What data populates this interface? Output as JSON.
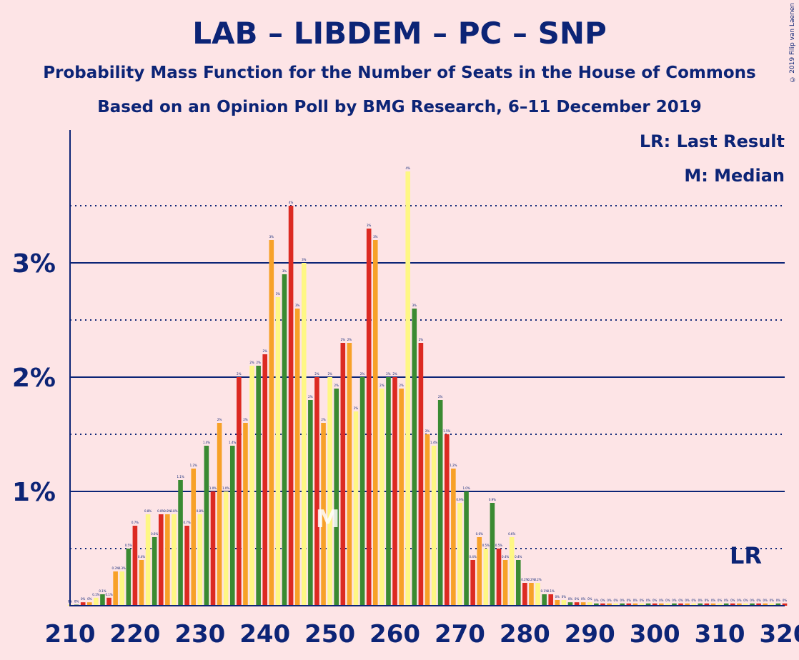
{
  "title": "LAB – LIBDEM – PC – SNP",
  "subtitle1": "Probability Mass Function for the Number of Seats in the House of Commons",
  "subtitle2": "Based on an Opinion Poll by BMG Research, 6–11 December 2019",
  "copyright": "© 2019 Filip van Laenen",
  "legend": {
    "last_result": "LR: Last Result",
    "median": "M: Median"
  },
  "markers": {
    "median_label": "M",
    "median_seat": 250,
    "last_result_label": "LR",
    "last_result_seat": 314
  },
  "colors": {
    "background": "#fde4e6",
    "text": "#0c2476",
    "red": "#dc2a22",
    "orange": "#f7a128",
    "yellow": "#fef784",
    "green": "#3a8a32"
  },
  "chart_data": {
    "type": "bar",
    "x_ticks": [
      "210",
      "220",
      "230",
      "240",
      "250",
      "260",
      "270",
      "280",
      "290",
      "300",
      "310",
      "320"
    ],
    "y_ticks": [
      "1%",
      "2%",
      "3%"
    ],
    "xlim": [
      210,
      320
    ],
    "ylim": [
      0,
      4.2
    ],
    "grid": "solid lines at 1%, 2%, 3%; dotted lines at 0.5%, 1.5%, 2.5%, 3.5%",
    "color_cycle": [
      "red",
      "orange",
      "yellow",
      "green"
    ],
    "color_cycle_start_seat": 212,
    "x": [
      210,
      211,
      212,
      213,
      214,
      215,
      216,
      217,
      218,
      219,
      220,
      221,
      222,
      223,
      224,
      225,
      226,
      227,
      228,
      229,
      230,
      231,
      232,
      233,
      234,
      235,
      236,
      237,
      238,
      239,
      240,
      241,
      242,
      243,
      244,
      245,
      246,
      247,
      248,
      249,
      250,
      251,
      252,
      253,
      254,
      255,
      256,
      257,
      258,
      259,
      260,
      261,
      262,
      263,
      264,
      265,
      266,
      267,
      268,
      269,
      270,
      271,
      272,
      273,
      274,
      275,
      276,
      277,
      278,
      279,
      280,
      281,
      282,
      283,
      284,
      285,
      286,
      287,
      288,
      289,
      290,
      291,
      292,
      293,
      294,
      295,
      296,
      297,
      298,
      299,
      300,
      301,
      302,
      303,
      304,
      305,
      306,
      307,
      308,
      309,
      310,
      311,
      312,
      313,
      314,
      315,
      316,
      317,
      318,
      319,
      320
    ],
    "values": [
      0,
      0,
      0.03,
      0.03,
      0.07,
      0.1,
      0.07,
      0.3,
      0.3,
      0.5,
      0.7,
      0.4,
      0.8,
      0.6,
      0.8,
      0.8,
      0.8,
      1.1,
      0.7,
      1.2,
      0.8,
      1.4,
      1.0,
      1.6,
      1.0,
      1.4,
      2.0,
      1.6,
      2.1,
      2.1,
      2.2,
      3.2,
      2.7,
      2.9,
      3.5,
      2.6,
      3.0,
      1.8,
      2.0,
      1.6,
      2.0,
      1.9,
      2.3,
      2.3,
      1.7,
      2.0,
      3.3,
      3.2,
      1.9,
      2.0,
      2.0,
      1.9,
      3.8,
      2.6,
      2.3,
      1.5,
      1.4,
      1.8,
      1.5,
      1.2,
      0.9,
      1.0,
      0.4,
      0.6,
      0.5,
      0.9,
      0.5,
      0.4,
      0.6,
      0.4,
      0.2,
      0.2,
      0.2,
      0.1,
      0.1,
      0.05,
      0.05,
      0.03,
      0.03,
      0.03,
      0.03,
      0.02,
      0.02,
      0.02,
      0.02,
      0.02,
      0.02,
      0.02,
      0.02,
      0.02,
      0.02,
      0.02,
      0.02,
      0.02,
      0.02,
      0.02,
      0.02,
      0.02,
      0.02,
      0.02,
      0.02,
      0.02,
      0.02,
      0.02,
      0.02,
      0.02,
      0.02,
      0.02,
      0.02,
      0.02,
      0.02
    ],
    "data_labels": [
      "0%",
      "0%",
      "0%",
      "0%",
      "0.1%",
      "0.1%",
      "0.1%",
      "0.3%",
      "0.3%",
      "0.5%",
      "0.7%",
      "0.4%",
      "0.8%",
      "0.6%",
      "0.8%",
      "0.8%",
      "0.8%",
      "1.1%",
      "0.7%",
      "1.2%",
      "0.8%",
      "1.4%",
      "1.0%",
      "2%",
      "1.0%",
      "1.4%",
      "2%",
      "2%",
      "2%",
      "2%",
      "2%",
      "3%",
      "3%",
      "3%",
      "4%",
      "3%",
      "3%",
      "2%",
      "2%",
      "2%",
      "2%",
      "2%",
      "2%",
      "2%",
      "2%",
      "2%",
      "3%",
      "3%",
      "2%",
      "2%",
      "2%",
      "2%",
      "4%",
      "3%",
      "2%",
      "2%",
      "1.4%",
      "2%",
      "1.5%",
      "1.2%",
      "0.9%",
      "1.0%",
      "0.4%",
      "0.6%",
      "0.5%",
      "0.9%",
      "0.5%",
      "0.4%",
      "0.6%",
      "0.4%",
      "0.2%",
      "0.2%",
      "0.2%",
      "0.1%",
      "0.1%",
      "0%",
      "0%",
      "0%",
      "0%",
      "0%",
      "0%",
      "0%",
      "0%",
      "0%",
      "0%",
      "0%",
      "0%",
      "0%",
      "0%",
      "0%",
      "0%",
      "0%",
      "0%",
      "0%",
      "0%",
      "0%",
      "0%",
      "0%",
      "0%",
      "0%",
      "0%",
      "0%",
      "0%",
      "0%",
      "0%",
      "0%",
      "0%",
      "0%",
      "0%",
      "0%",
      "0%"
    ]
  }
}
